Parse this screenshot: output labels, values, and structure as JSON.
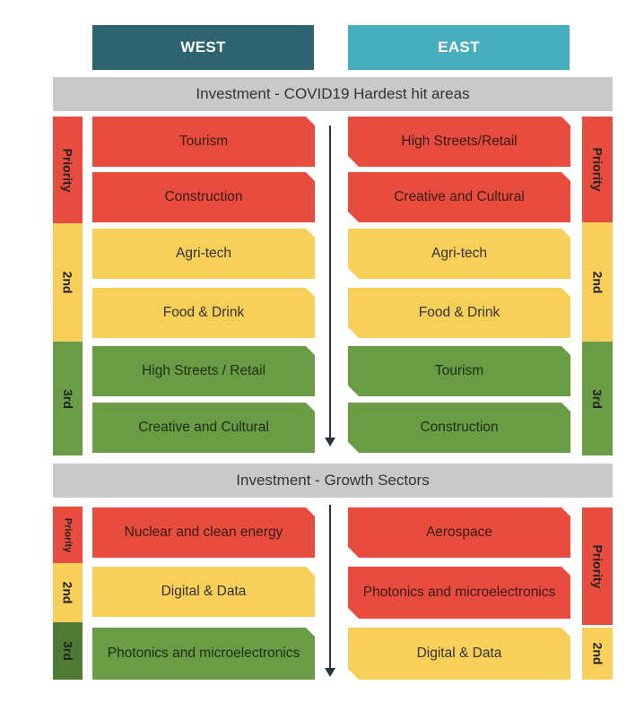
{
  "headers": {
    "west": "WEST",
    "east": "EAST"
  },
  "covid": {
    "title": "Investment - COVID19 Hardest hit areas",
    "west_labels": {
      "priority": "Priority",
      "second": "2nd",
      "third": "3rd"
    },
    "east_labels": {
      "priority": "Priority",
      "second": "2nd",
      "third": "3rd"
    },
    "west": [
      "Tourism",
      "Construction",
      "Agri-tech",
      "Food & Drink",
      "High Streets / Retail",
      "Creative and Cultural"
    ],
    "east": [
      "High Streets/Retail",
      "Creative and Cultural",
      "Agri-tech",
      "Food & Drink",
      "Tourism",
      "Construction"
    ]
  },
  "growth": {
    "title": "Investment - Growth Sectors",
    "west_labels": {
      "priority": "Priority",
      "second": "2nd",
      "third": "3rd"
    },
    "east_labels": {
      "priority": "Priority",
      "second": "2nd"
    },
    "west": [
      "Nuclear and clean energy",
      "Digital & Data",
      "Photonics and microelectronics"
    ],
    "east": [
      "Aerospace",
      "Photonics and microelectronics",
      "Digital & Data"
    ]
  },
  "colors": {
    "red": "#e74c3f",
    "yellow": "#f7cf59",
    "green": "#6a9c45",
    "dark_green": "#4f7a34",
    "west_header": "#2d6470",
    "east_header": "#47aebd",
    "banner": "#c9c9c9"
  }
}
